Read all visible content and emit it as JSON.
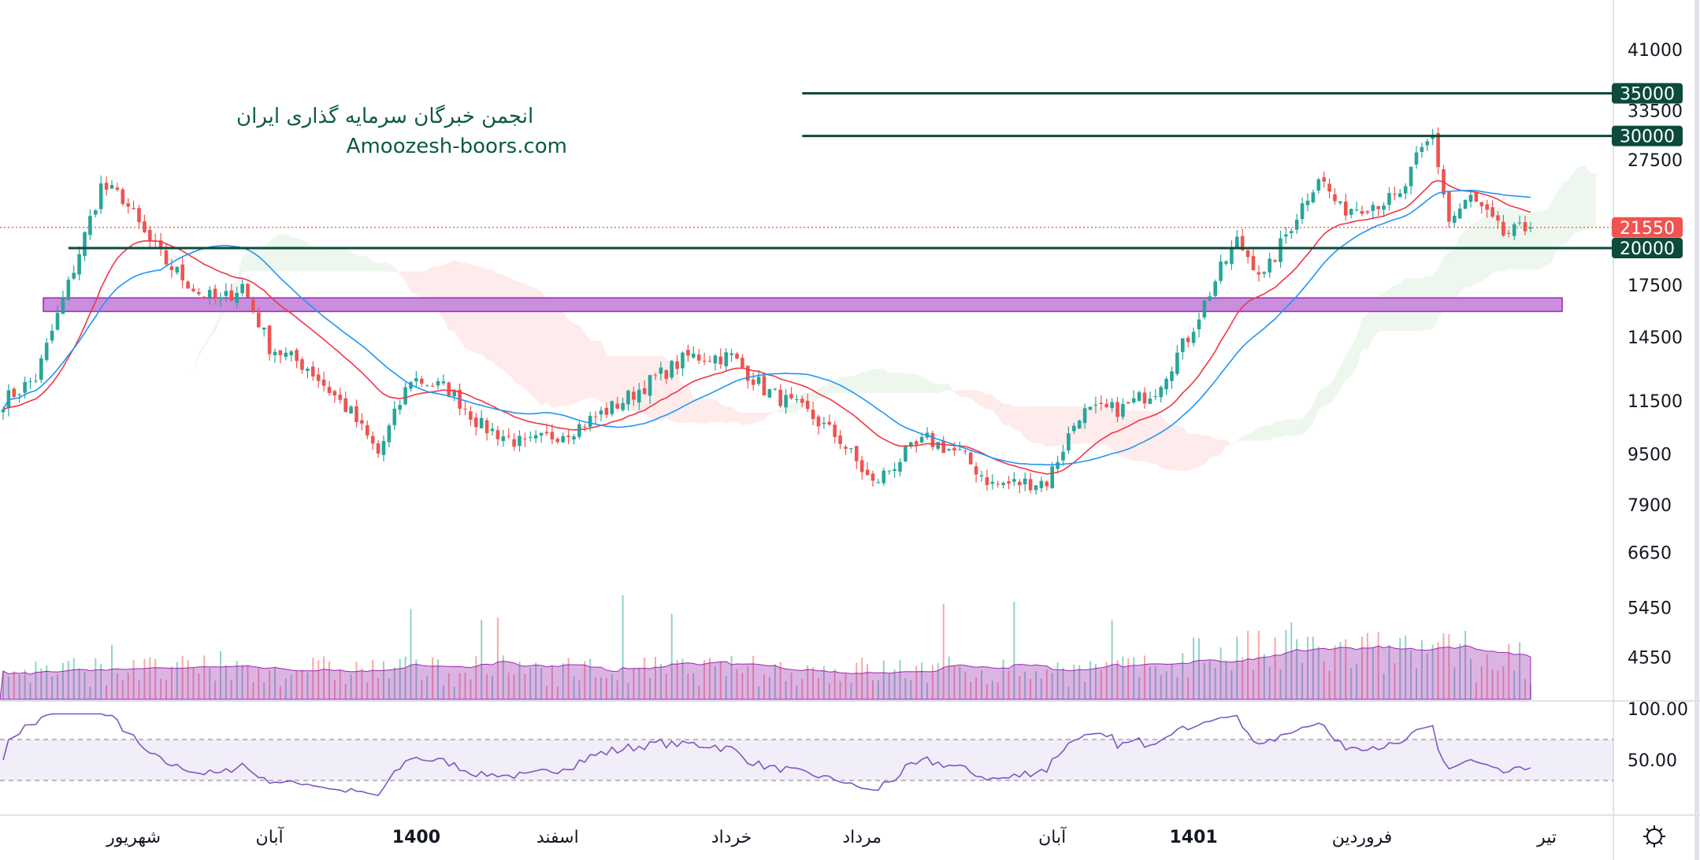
{
  "watermark": {
    "line1": "انجمن خبرگان سرمایه گذاری ایران",
    "line2": "Amoozesh-boors.com"
  },
  "colors": {
    "up": "#26a69a",
    "down": "#ef5350",
    "ema": "#f23645",
    "ma": "#2196f3",
    "level": "#0b4a3c",
    "zone": "#c98fdc",
    "rsi": "#7e57c2",
    "last": "#f05350"
  },
  "settings_icon": "gear-icon",
  "chart_data": {
    "type": "candlestick",
    "scale": "log",
    "ylim": [
      4000,
      46000
    ],
    "price_ticks": [
      "41000",
      "33500",
      "27500",
      "17500",
      "14500",
      "11500",
      "9500",
      "7900",
      "6650",
      "5450",
      "4550"
    ],
    "price_tick_values": [
      41000,
      33500,
      27500,
      17500,
      14500,
      11500,
      9500,
      7900,
      6650,
      5450,
      4550
    ],
    "last_price": {
      "label": "21550",
      "value": 21550
    },
    "levels": [
      {
        "label": "35000",
        "value": 35000,
        "from_bar": 147
      },
      {
        "label": "30000",
        "value": 30000,
        "from_bar": 147
      },
      {
        "label": "20000",
        "value": 20000,
        "from_bar": 12
      }
    ],
    "support_zone": {
      "low": 15900,
      "high": 16700
    },
    "close_keypoints_bar_price": [
      [
        0,
        11500
      ],
      [
        6,
        12500
      ],
      [
        12,
        17500
      ],
      [
        18,
        25000
      ],
      [
        22,
        24000
      ],
      [
        26,
        21000
      ],
      [
        30,
        19000
      ],
      [
        36,
        17000
      ],
      [
        40,
        16500
      ],
      [
        44,
        17500
      ],
      [
        49,
        14000
      ],
      [
        56,
        13000
      ],
      [
        64,
        11000
      ],
      [
        69,
        9500
      ],
      [
        75,
        12500
      ],
      [
        82,
        12000
      ],
      [
        88,
        10500
      ],
      [
        96,
        9800
      ],
      [
        106,
        10500
      ],
      [
        114,
        11500
      ],
      [
        120,
        12500
      ],
      [
        126,
        13500
      ],
      [
        134,
        13500
      ],
      [
        140,
        12000
      ],
      [
        148,
        11000
      ],
      [
        154,
        10000
      ],
      [
        160,
        8500
      ],
      [
        166,
        9500
      ],
      [
        170,
        10000
      ],
      [
        176,
        9500
      ],
      [
        182,
        8500
      ],
      [
        192,
        8600
      ],
      [
        198,
        11000
      ],
      [
        206,
        11200
      ],
      [
        212,
        12000
      ],
      [
        218,
        14500
      ],
      [
        224,
        18500
      ],
      [
        227,
        20500
      ],
      [
        232,
        18000
      ],
      [
        236,
        21000
      ],
      [
        242,
        26000
      ],
      [
        246,
        23000
      ],
      [
        252,
        23500
      ],
      [
        257,
        24000
      ],
      [
        260,
        27500
      ],
      [
        263,
        30000
      ],
      [
        266,
        22000
      ],
      [
        270,
        24000
      ],
      [
        276,
        21000
      ],
      [
        281,
        21550
      ]
    ],
    "bars": 282,
    "rsi": {
      "ticks": [
        "100.00",
        "50.00"
      ],
      "upper": 70,
      "lower": 30
    },
    "time_labels": [
      {
        "label": "شهریور",
        "bar": 24,
        "bold": false
      },
      {
        "label": "آبان",
        "bar": 49,
        "bold": false
      },
      {
        "label": "1400",
        "bar": 76,
        "bold": true
      },
      {
        "label": "اسفند",
        "bar": 102,
        "bold": false
      },
      {
        "label": "خرداد",
        "bar": 134,
        "bold": false
      },
      {
        "label": "مرداد",
        "bar": 158,
        "bold": false
      },
      {
        "label": "آبان",
        "bar": 193,
        "bold": false
      },
      {
        "label": "1401",
        "bar": 219,
        "bold": true
      },
      {
        "label": "فروردین",
        "bar": 250,
        "bold": false
      },
      {
        "label": "تیر",
        "bar": 284,
        "bold": false
      }
    ]
  }
}
